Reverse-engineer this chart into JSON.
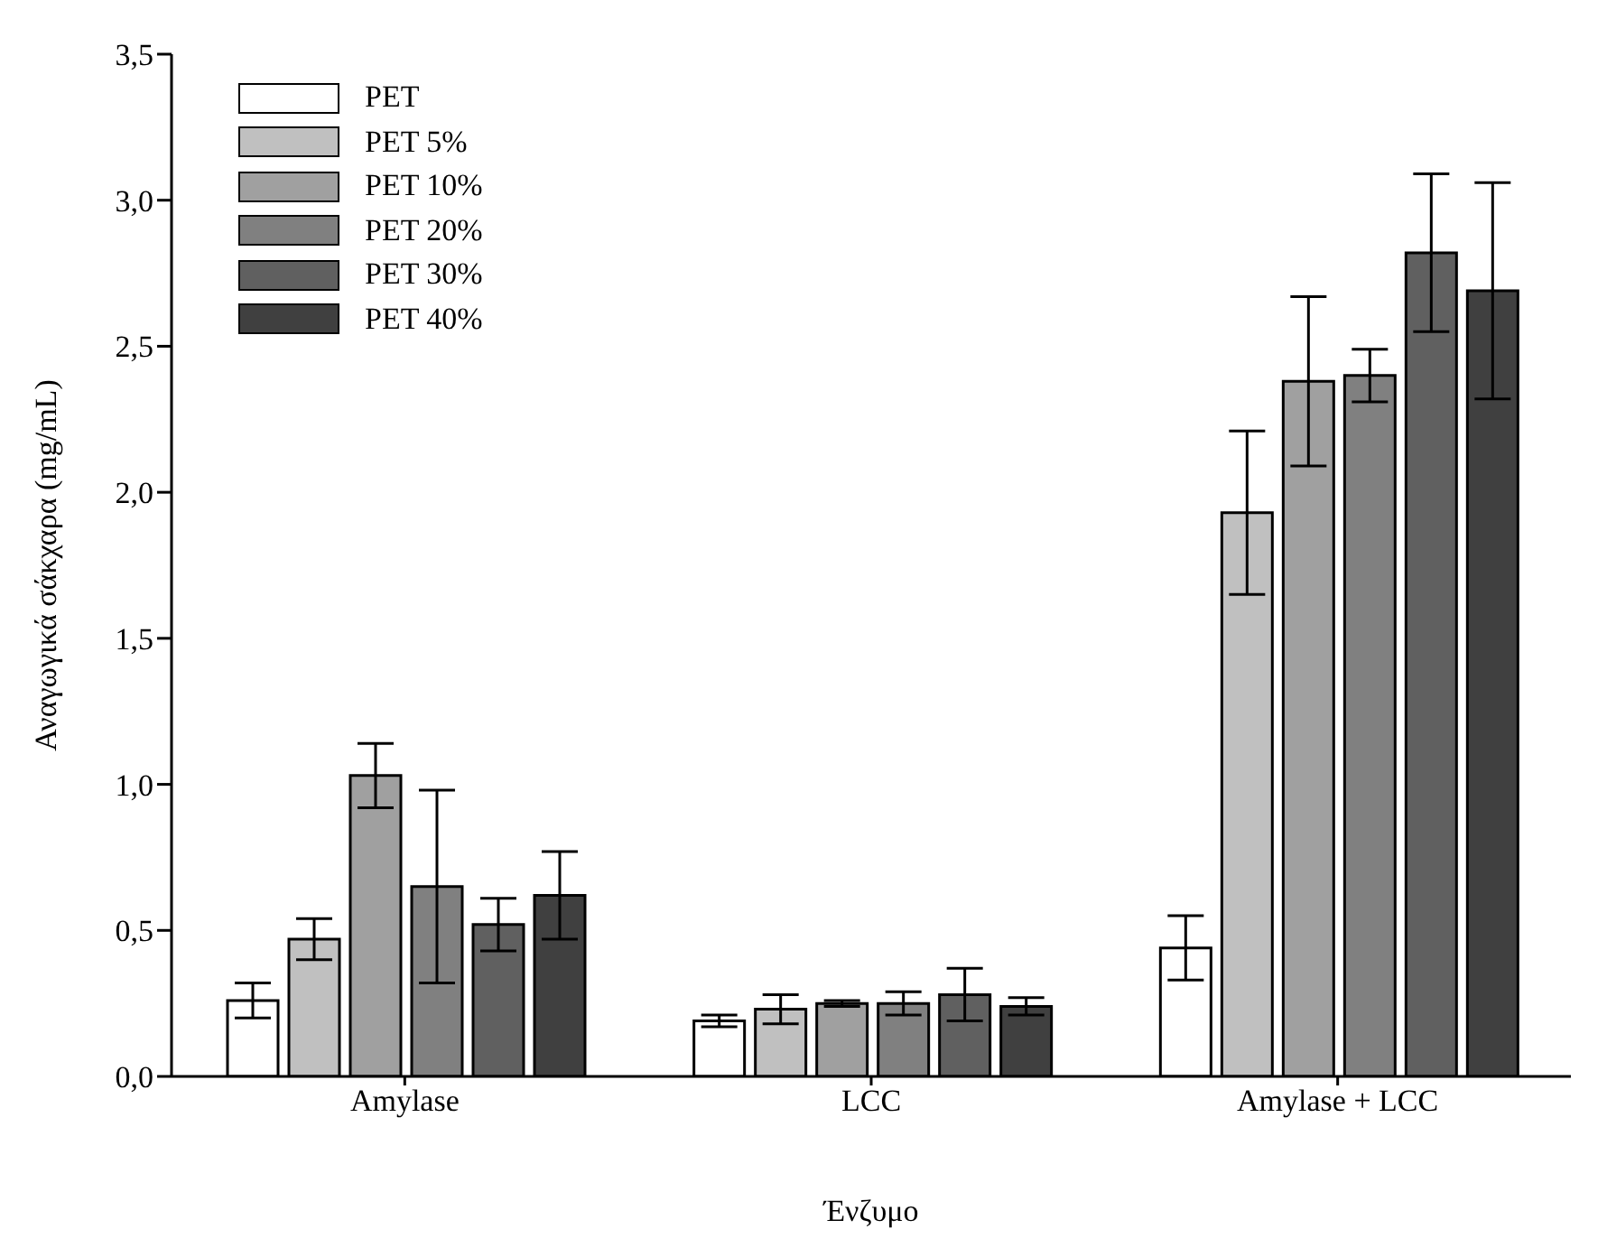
{
  "chart_data": {
    "type": "bar",
    "xlabel": "Ένζυμο",
    "ylabel": "Αναγωγικά σάκχαρα (mg/mL)",
    "categories": [
      "Amylase",
      "LCC",
      "Amylase + LCC"
    ],
    "series": [
      {
        "name": "PET",
        "color": "#ffffff",
        "values": [
          0.26,
          0.19,
          0.44
        ],
        "errors": [
          0.06,
          0.02,
          0.11
        ]
      },
      {
        "name": "PET 5%",
        "color": "#c0c0c0",
        "values": [
          0.47,
          0.23,
          1.93
        ],
        "errors": [
          0.07,
          0.05,
          0.28
        ]
      },
      {
        "name": "PET 10%",
        "color": "#a0a0a0",
        "values": [
          1.03,
          0.25,
          2.38
        ],
        "errors": [
          0.11,
          0.01,
          0.29
        ]
      },
      {
        "name": "PET 20%",
        "color": "#808080",
        "values": [
          0.65,
          0.25,
          2.4
        ],
        "errors": [
          0.33,
          0.04,
          0.09
        ]
      },
      {
        "name": "PET 30%",
        "color": "#606060",
        "values": [
          0.52,
          0.28,
          2.82
        ],
        "errors": [
          0.09,
          0.09,
          0.27
        ]
      },
      {
        "name": "PET 40%",
        "color": "#404040",
        "values": [
          0.62,
          0.24,
          2.69
        ],
        "errors": [
          0.15,
          0.03,
          0.37
        ]
      }
    ],
    "ylim": [
      0,
      3.5
    ],
    "yticks": [
      {
        "value": 0,
        "label": "0,0"
      },
      {
        "value": 0.5,
        "label": "0,5"
      },
      {
        "value": 1,
        "label": "1,0"
      },
      {
        "value": 1.5,
        "label": "1,5"
      },
      {
        "value": 2,
        "label": "2,0"
      },
      {
        "value": 2.5,
        "label": "2,5"
      },
      {
        "value": 3,
        "label": "3,0"
      },
      {
        "value": 3.5,
        "label": "3,5"
      }
    ],
    "grid": false,
    "legend": "top left"
  }
}
